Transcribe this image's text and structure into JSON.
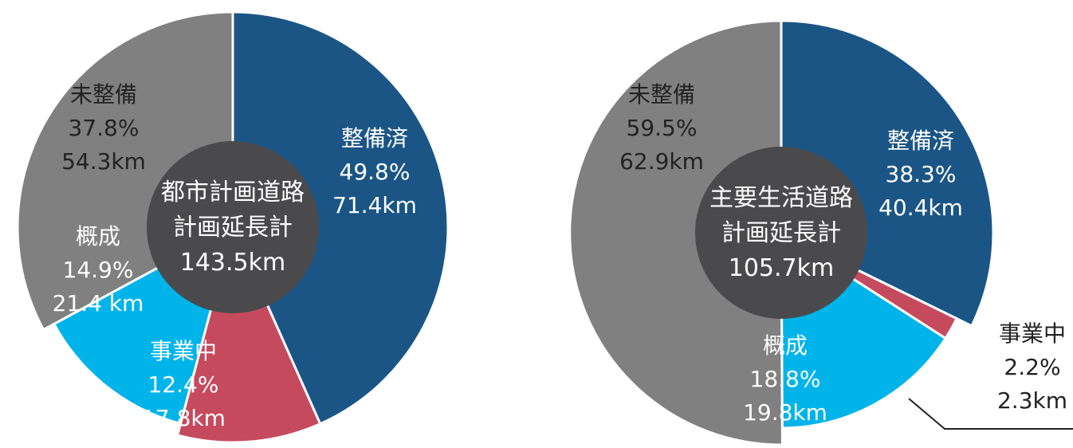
{
  "chart_data": [
    {
      "type": "pie",
      "center_text": [
        "都市計画道路",
        "計画延長計",
        "143.5km"
      ],
      "slices": [
        {
          "name": "整備済",
          "percent": 49.8,
          "value_km": 71.4,
          "label_lines": [
            "整備済",
            "49.8%",
            "71.4km"
          ],
          "color": "#1b5585",
          "text_color": "#ffffff"
        },
        {
          "name": "事業中",
          "percent": 12.4,
          "value_km": 17.8,
          "label_lines": [
            "事業中",
            "12.4%",
            "17.8km"
          ],
          "color": "#c64a5e",
          "text_color": "#ffffff"
        },
        {
          "name": "概成",
          "percent": 14.9,
          "value_km": 21.4,
          "label_lines": [
            "概成",
            "14.9%",
            "21.4 km"
          ],
          "color": "#00b4ea",
          "text_color": "#ffffff"
        },
        {
          "name": "未整備",
          "percent": 37.8,
          "value_km": 54.3,
          "label_lines": [
            "未整備",
            "37.8%",
            "54.3km"
          ],
          "color": "#808080",
          "text_color": "#222222"
        }
      ]
    },
    {
      "type": "pie",
      "center_text": [
        "主要生活道路",
        "計画延長計",
        "105.7km"
      ],
      "slices": [
        {
          "name": "整備済",
          "percent": 38.3,
          "value_km": 40.4,
          "label_lines": [
            "整備済",
            "38.3%",
            "40.4km"
          ],
          "color": "#1b5585",
          "text_color": "#ffffff"
        },
        {
          "name": "事業中",
          "percent": 2.2,
          "value_km": 2.3,
          "label_lines": [
            "事業中",
            "2.2%",
            "2.3km"
          ],
          "color": "#c64a5e",
          "text_color": "#222222"
        },
        {
          "name": "概成",
          "percent": 18.8,
          "value_km": 19.8,
          "label_lines": [
            "概成",
            "18.8%",
            "19.8km"
          ],
          "color": "#00b4ea",
          "text_color": "#ffffff"
        },
        {
          "name": "未整備",
          "percent": 59.5,
          "value_km": 62.9,
          "label_lines": [
            "未整備",
            "59.5%",
            "62.9km"
          ],
          "color": "#808080",
          "text_color": "#222222"
        }
      ]
    }
  ],
  "colors": {
    "hub": "#4a4a4c",
    "separator": "#ffffff",
    "leader": "#222222"
  }
}
